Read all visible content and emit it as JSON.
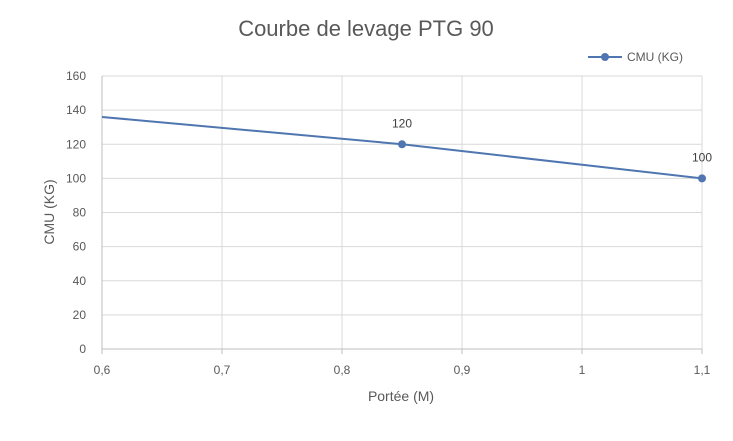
{
  "chart_data": {
    "type": "line",
    "title": "Courbe de levage PTG 90",
    "xlabel": "Portée (M)",
    "ylabel": "CMU (KG)",
    "xlim": [
      0.6,
      1.1
    ],
    "ylim": [
      0,
      160
    ],
    "x_ticks": [
      "0,6",
      "0,7",
      "0,8",
      "0,9",
      "1",
      "1,1"
    ],
    "y_ticks": [
      "0",
      "20",
      "40",
      "60",
      "80",
      "100",
      "120",
      "140",
      "160"
    ],
    "grid": true,
    "legend_position": "top-right",
    "series": [
      {
        "name": "CMU (KG)",
        "color": "#4f76b0",
        "x": [
          0.6,
          0.85,
          1.1
        ],
        "y": [
          136,
          120,
          100
        ],
        "markers": [
          false,
          true,
          true
        ],
        "data_labels": [
          "",
          "120",
          "100"
        ]
      }
    ]
  }
}
